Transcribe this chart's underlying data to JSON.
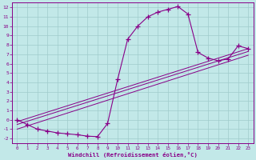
{
  "xlabel": "Windchill (Refroidissement éolien,°C)",
  "bg_color": "#c2e8e8",
  "line_color": "#880088",
  "grid_color": "#a0cccc",
  "xlim": [
    -0.5,
    23.5
  ],
  "ylim": [
    -2.5,
    12.5
  ],
  "xticks": [
    0,
    1,
    2,
    3,
    4,
    5,
    6,
    7,
    8,
    9,
    10,
    11,
    12,
    13,
    14,
    15,
    16,
    17,
    18,
    19,
    20,
    21,
    22,
    23
  ],
  "yticks": [
    -2,
    -1,
    0,
    1,
    2,
    3,
    4,
    5,
    6,
    7,
    8,
    9,
    10,
    11,
    12
  ],
  "series": [
    [
      0,
      0.0
    ],
    [
      1,
      -0.5
    ],
    [
      2,
      -1.0
    ],
    [
      3,
      -1.2
    ],
    [
      4,
      -1.4
    ],
    [
      5,
      -1.5
    ],
    [
      6,
      -1.6
    ],
    [
      7,
      -1.75
    ],
    [
      8,
      -1.8
    ],
    [
      9,
      -0.4
    ],
    [
      10,
      4.3
    ],
    [
      11,
      8.6
    ],
    [
      12,
      10.0
    ],
    [
      13,
      11.0
    ],
    [
      14,
      11.5
    ],
    [
      15,
      11.8
    ],
    [
      16,
      12.1
    ],
    [
      17,
      11.3
    ],
    [
      18,
      7.2
    ],
    [
      19,
      6.6
    ],
    [
      20,
      6.3
    ],
    [
      21,
      6.5
    ],
    [
      22,
      7.9
    ],
    [
      23,
      7.6
    ]
  ],
  "diag_lines": [
    [
      [
        0,
        -0.2
      ],
      [
        23,
        7.6
      ]
    ],
    [
      [
        0,
        -0.5
      ],
      [
        23,
        7.3
      ]
    ],
    [
      [
        0,
        -1.0
      ],
      [
        23,
        6.9
      ]
    ]
  ]
}
